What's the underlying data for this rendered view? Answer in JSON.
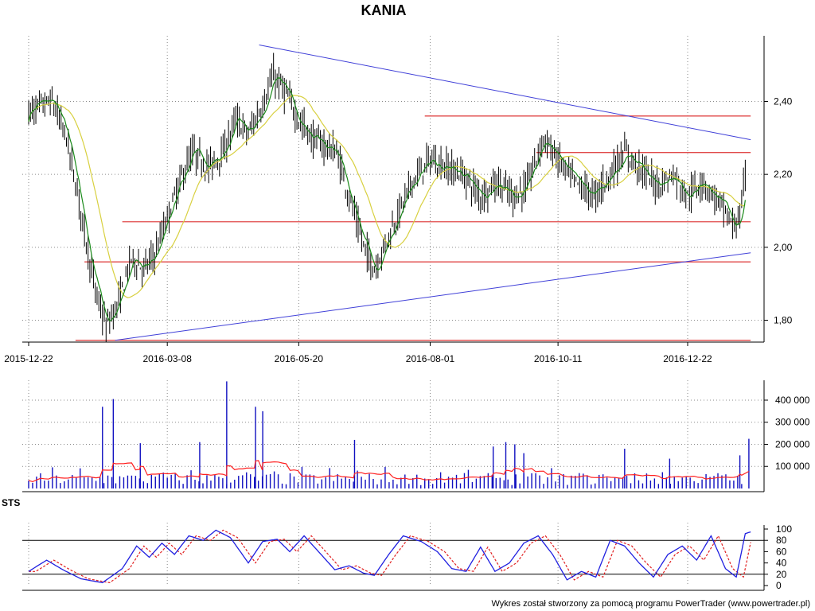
{
  "title": "KANIA",
  "footer": "Wykres został stworzony za pomocą programu PowerTrader (www.powertrader.pl)",
  "colors": {
    "candles": "#000000",
    "ma_short": "#1a8a1a",
    "ma_long": "#d8d040",
    "trendline": "#4040d8",
    "support_resistance": "#e04848",
    "volume_bars": "#1010c0",
    "volume_avg": "#ff2020",
    "sts_main": "#2020e0",
    "sts_signal": "#e02020"
  },
  "chart_data": [
    {
      "type": "candlestick",
      "panel": "price",
      "title": "KANIA",
      "x_tick_labels": [
        "2015-12-22",
        "2016-03-08",
        "2016-05-20",
        "2016-08-01",
        "2016-10-11",
        "2016-12-22"
      ],
      "y_ticks": [
        1.8,
        2.0,
        2.2,
        2.4
      ],
      "y_tick_labels": [
        "1,80",
        "2,00",
        "2,20",
        "2,40"
      ],
      "ylim": [
        1.74,
        2.58
      ],
      "grid": true,
      "axis_side": "right",
      "price_path": [
        [
          "2015-12-22",
          2.37
        ],
        [
          "2016-01-04",
          2.4
        ],
        [
          "2016-01-12",
          2.3
        ],
        [
          "2016-01-20",
          2.1
        ],
        [
          "2016-01-28",
          1.88
        ],
        [
          "2016-02-03",
          1.78
        ],
        [
          "2016-02-10",
          1.85
        ],
        [
          "2016-02-17",
          1.97
        ],
        [
          "2016-02-24",
          1.94
        ],
        [
          "2016-03-01",
          1.98
        ],
        [
          "2016-03-08",
          2.08
        ],
        [
          "2016-03-15",
          2.18
        ],
        [
          "2016-03-22",
          2.26
        ],
        [
          "2016-03-31",
          2.22
        ],
        [
          "2016-04-08",
          2.26
        ],
        [
          "2016-04-15",
          2.35
        ],
        [
          "2016-04-22",
          2.31
        ],
        [
          "2016-04-29",
          2.38
        ],
        [
          "2016-05-06",
          2.47
        ],
        [
          "2016-05-13",
          2.42
        ],
        [
          "2016-05-20",
          2.35
        ],
        [
          "2016-05-27",
          2.3
        ],
        [
          "2016-06-03",
          2.28
        ],
        [
          "2016-06-10",
          2.26
        ],
        [
          "2016-06-17",
          2.14
        ],
        [
          "2016-06-24",
          2.02
        ],
        [
          "2016-06-28",
          1.97
        ],
        [
          "2016-07-01",
          1.94
        ],
        [
          "2016-07-08",
          2.02
        ],
        [
          "2016-07-15",
          2.1
        ],
        [
          "2016-07-22",
          2.18
        ],
        [
          "2016-08-01",
          2.24
        ],
        [
          "2016-08-10",
          2.22
        ],
        [
          "2016-08-19",
          2.2
        ],
        [
          "2016-08-29",
          2.14
        ],
        [
          "2016-09-07",
          2.18
        ],
        [
          "2016-09-16",
          2.14
        ],
        [
          "2016-09-23",
          2.16
        ],
        [
          "2016-10-03",
          2.3
        ],
        [
          "2016-10-11",
          2.24
        ],
        [
          "2016-10-20",
          2.18
        ],
        [
          "2016-10-31",
          2.14
        ],
        [
          "2016-11-09",
          2.2
        ],
        [
          "2016-11-17",
          2.26
        ],
        [
          "2016-11-25",
          2.22
        ],
        [
          "2016-12-05",
          2.17
        ],
        [
          "2016-12-14",
          2.2
        ],
        [
          "2016-12-22",
          2.14
        ],
        [
          "2016-12-30",
          2.18
        ],
        [
          "2017-01-09",
          2.12
        ],
        [
          "2017-01-16",
          2.06
        ],
        [
          "2017-01-20",
          2.08
        ],
        [
          "2017-01-23",
          2.2
        ]
      ],
      "overlays": {
        "trendlines": [
          {
            "from": [
              "2016-04-28",
              2.555
            ],
            "to": [
              "2017-01-26",
              2.295
            ]
          },
          {
            "from": [
              "2016-02-08",
              1.745
            ],
            "to": [
              "2017-01-26",
              1.985
            ]
          }
        ],
        "horizontal_lines": [
          {
            "y": 2.36,
            "from": "2016-07-29",
            "to": "2017-01-26"
          },
          {
            "y": 2.26,
            "from": "2016-09-29",
            "to": "2017-01-26"
          },
          {
            "y": 2.07,
            "from": "2016-02-12",
            "to": "2017-01-26"
          },
          {
            "y": 1.96,
            "from": "2016-01-22",
            "to": "2017-01-26"
          },
          {
            "y": 1.745,
            "from": "2016-01-17",
            "to": "2017-01-26"
          }
        ]
      }
    },
    {
      "type": "bar",
      "panel": "volume",
      "y_ticks": [
        100000,
        200000,
        300000,
        400000
      ],
      "y_tick_labels": [
        "100 000",
        "200 000",
        "300 000",
        "400 000"
      ],
      "ylim": [
        0,
        490000
      ],
      "grid": true,
      "spikes": [
        [
          "2016-02-01",
          370000
        ],
        [
          "2016-02-07",
          405000
        ],
        [
          "2016-02-22",
          205000
        ],
        [
          "2016-03-26",
          210000
        ],
        [
          "2016-04-10",
          485000
        ],
        [
          "2016-04-26",
          370000
        ],
        [
          "2016-04-30",
          350000
        ],
        [
          "2016-06-20",
          220000
        ],
        [
          "2016-09-05",
          190000
        ],
        [
          "2016-09-12",
          210000
        ],
        [
          "2016-09-17",
          200000
        ],
        [
          "2016-09-22",
          160000
        ],
        [
          "2016-11-17",
          180000
        ],
        [
          "2016-12-12",
          135000
        ],
        [
          "2017-01-20",
          150000
        ],
        [
          "2017-01-25",
          225000
        ]
      ]
    },
    {
      "type": "line",
      "panel": "STS",
      "label": "STS",
      "y_ticks": [
        0,
        20,
        40,
        60,
        80,
        100
      ],
      "y_tick_labels": [
        "0",
        "20",
        "40",
        "60",
        "80",
        "100"
      ],
      "ylim": [
        0,
        100
      ],
      "reference_lines": [
        20,
        80
      ],
      "sts_path": [
        [
          "2015-12-22",
          25
        ],
        [
          "2016-01-01",
          45
        ],
        [
          "2016-01-10",
          28
        ],
        [
          "2016-01-20",
          12
        ],
        [
          "2016-02-01",
          5
        ],
        [
          "2016-02-12",
          30
        ],
        [
          "2016-02-20",
          70
        ],
        [
          "2016-02-27",
          50
        ],
        [
          "2016-03-05",
          75
        ],
        [
          "2016-03-12",
          55
        ],
        [
          "2016-03-20",
          88
        ],
        [
          "2016-03-28",
          80
        ],
        [
          "2016-04-04",
          98
        ],
        [
          "2016-04-12",
          85
        ],
        [
          "2016-04-22",
          40
        ],
        [
          "2016-04-30",
          78
        ],
        [
          "2016-05-08",
          82
        ],
        [
          "2016-05-15",
          60
        ],
        [
          "2016-05-23",
          88
        ],
        [
          "2016-05-31",
          60
        ],
        [
          "2016-06-09",
          28
        ],
        [
          "2016-06-17",
          35
        ],
        [
          "2016-06-25",
          22
        ],
        [
          "2016-07-01",
          18
        ],
        [
          "2016-07-09",
          55
        ],
        [
          "2016-07-17",
          88
        ],
        [
          "2016-07-27",
          78
        ],
        [
          "2016-08-05",
          60
        ],
        [
          "2016-08-13",
          30
        ],
        [
          "2016-08-21",
          25
        ],
        [
          "2016-08-29",
          68
        ],
        [
          "2016-09-06",
          25
        ],
        [
          "2016-09-14",
          40
        ],
        [
          "2016-09-22",
          75
        ],
        [
          "2016-09-30",
          88
        ],
        [
          "2016-10-08",
          55
        ],
        [
          "2016-10-16",
          10
        ],
        [
          "2016-10-24",
          25
        ],
        [
          "2016-11-01",
          15
        ],
        [
          "2016-11-09",
          80
        ],
        [
          "2016-11-17",
          70
        ],
        [
          "2016-11-25",
          40
        ],
        [
          "2016-12-03",
          15
        ],
        [
          "2016-12-11",
          55
        ],
        [
          "2016-12-19",
          70
        ],
        [
          "2016-12-27",
          45
        ],
        [
          "2017-01-04",
          88
        ],
        [
          "2017-01-12",
          30
        ],
        [
          "2017-01-18",
          15
        ],
        [
          "2017-01-23",
          92
        ],
        [
          "2017-01-26",
          95
        ]
      ]
    }
  ]
}
